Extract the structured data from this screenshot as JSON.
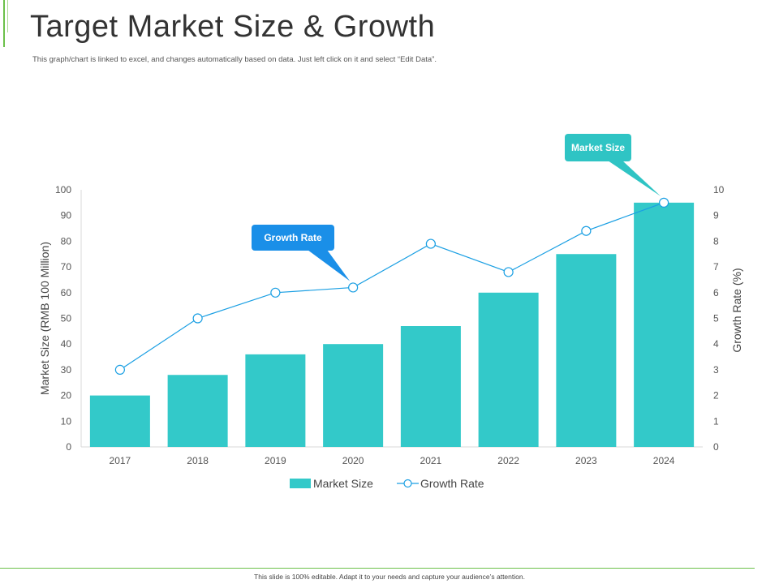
{
  "slide": {
    "title": "Target Market Size & Growth",
    "subtitle": "This graph/chart is linked to excel, and changes automatically based on data. Just left click on it and select “Edit Data”.",
    "footer": "This slide is 100% editable. Adapt it to your needs and capture your audience’s attention."
  },
  "colors": {
    "accent": "#6cc04a",
    "bar": "#33c9c9",
    "line": "#1a9fe3",
    "callout_growth": "#1a8fe8",
    "callout_market": "#2fc4c4"
  },
  "chart_data": {
    "type": "bar",
    "categories": [
      "2017",
      "2018",
      "2019",
      "2020",
      "2021",
      "2022",
      "2023",
      "2024"
    ],
    "series": [
      {
        "name": "Market Size",
        "type": "bar",
        "axis": "left",
        "values": [
          20,
          28,
          36,
          40,
          47,
          60,
          75,
          95
        ]
      },
      {
        "name": "Growth Rate",
        "type": "line",
        "axis": "right",
        "values": [
          3,
          5,
          6,
          6.2,
          7.9,
          6.8,
          8.4,
          9.5
        ]
      }
    ],
    "ylabel": "Market Size (RMB 100 Million)",
    "y2label": "Growth Rate (%)",
    "ylim": [
      0,
      100
    ],
    "y2lim": [
      0,
      10
    ],
    "yticks": [
      "0",
      "10",
      "20",
      "30",
      "40",
      "50",
      "60",
      "70",
      "80",
      "90",
      "100"
    ],
    "y2ticks": [
      "0",
      "1",
      "2",
      "3",
      "4",
      "5",
      "6",
      "7",
      "8",
      "9",
      "10"
    ],
    "legend": "bottom",
    "grid": false,
    "annotations": [
      {
        "text": "Growth Rate",
        "series": "Growth Rate",
        "category": "2020"
      },
      {
        "text": "Market Size",
        "series": "Market Size",
        "category": "2024"
      }
    ]
  }
}
